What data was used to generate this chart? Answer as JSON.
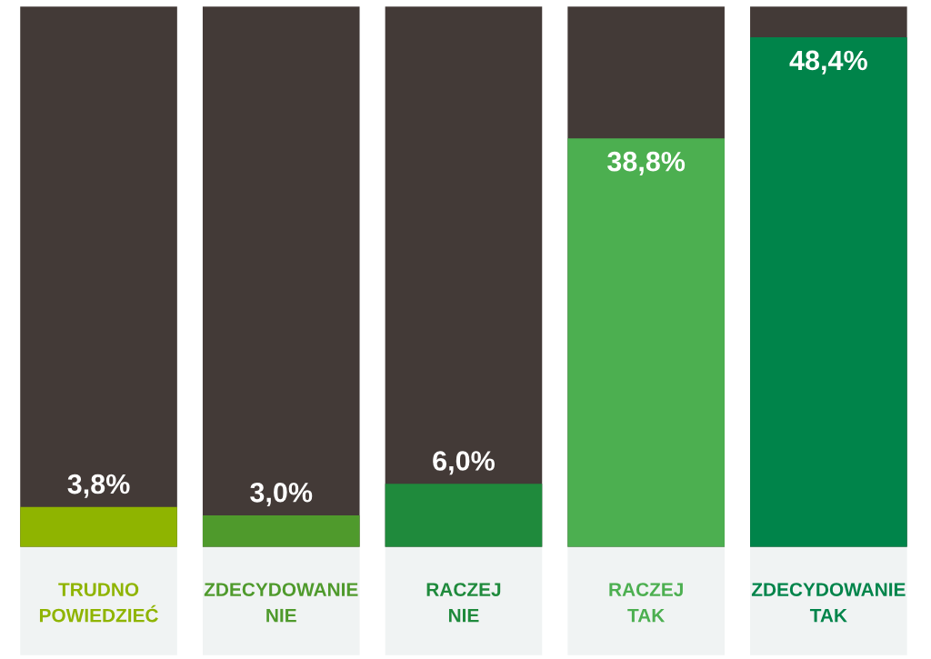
{
  "chart_data": {
    "type": "bar",
    "categories": [
      "TRUDNO\nPOWIEDZIEĆ",
      "ZDECYDOWANIE\nNIE",
      "RACZEJ\nNIE",
      "RACZEJ\nTAK",
      "ZDECYDOWANIE\nTAK"
    ],
    "values": [
      3.8,
      3.0,
      6.0,
      38.8,
      48.4
    ],
    "colors": [
      "#8fb400",
      "#4f9a2c",
      "#1f8a3c",
      "#4caf50",
      "#00844a"
    ],
    "value_labels": [
      "3,8%",
      "3,0%",
      "6,0%",
      "38,8%",
      "48,4%"
    ],
    "tick_labels": "x",
    "grid": false,
    "legend": false
  }
}
